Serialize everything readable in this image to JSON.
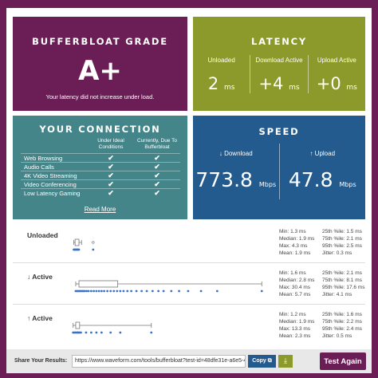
{
  "grade": {
    "title": "BUFFERBLOAT GRADE",
    "value": "A+",
    "note": "Your latency did not increase under load."
  },
  "latency": {
    "title": "LATENCY",
    "cols": [
      {
        "label": "Unloaded",
        "value": "2",
        "unit": "ms"
      },
      {
        "label": "Download Active",
        "value": "+4",
        "unit": "ms"
      },
      {
        "label": "Upload Active",
        "value": "+0",
        "unit": "ms"
      }
    ]
  },
  "connection": {
    "title": "YOUR CONNECTION",
    "col_ideal": "Under Ideal Conditions",
    "col_current": "Currently, Due To Bufferbloat",
    "rows": [
      {
        "label": "Web Browsing",
        "ideal": "✔",
        "current": "✔"
      },
      {
        "label": "Audio Calls",
        "ideal": "✔",
        "current": "✔"
      },
      {
        "label": "4K Video Streaming",
        "ideal": "✔",
        "current": "✔"
      },
      {
        "label": "Video Conferencing",
        "ideal": "✔",
        "current": "✔"
      },
      {
        "label": "Low Latency Gaming",
        "ideal": "✔",
        "current": "✔"
      }
    ],
    "read_more": "Read More"
  },
  "speed": {
    "title": "SPEED",
    "download_label": "↓ Download",
    "download_value": "773.8",
    "upload_label": "↑ Upload",
    "upload_value": "47.8",
    "unit": "Mbps"
  },
  "stats": {
    "unloaded": {
      "label": "Unloaded",
      "left": [
        "Min: 1.3 ms",
        "Median: 1.9 ms",
        "Max: 4.3 ms",
        "Mean: 1.9 ms"
      ],
      "right": [
        "25th %ile: 1.5 ms",
        "75th %ile: 2.1 ms",
        "95th %ile: 2.5 ms",
        "Jitter: 0.3 ms"
      ],
      "box": {
        "whisker_lo": 1.3,
        "q1": 1.5,
        "q3": 2.1,
        "whisker_hi": 2.5,
        "max": 4.3
      },
      "points": [
        1.3,
        1.4,
        1.5,
        1.6,
        1.7,
        1.8,
        1.9,
        2.0,
        2.1,
        4.3
      ]
    },
    "download": {
      "label": "↓ Active",
      "left": [
        "Min: 1.6 ms",
        "Median: 2.8 ms",
        "Max: 30.4 ms",
        "Mean: 5.7 ms"
      ],
      "right": [
        "25th %ile: 2.1 ms",
        "75th %ile: 8.1 ms",
        "95th %ile: 17.6 ms",
        "Jitter: 4.1 ms"
      ],
      "box": {
        "whisker_lo": 1.6,
        "q1": 2.1,
        "q3": 8.1,
        "whisker_hi": 30.4,
        "max": 30.4
      },
      "points": [
        1.6,
        1.8,
        2.0,
        2.2,
        2.4,
        2.6,
        2.8,
        3.0,
        3.3,
        3.6,
        4.0,
        4.4,
        4.8,
        5.2,
        5.6,
        6.0,
        6.5,
        7.0,
        7.5,
        8.0,
        8.5,
        9.0,
        9.6,
        10.2,
        11.0,
        11.8,
        12.6,
        13.5,
        14.4,
        15.2,
        16.4,
        17.6,
        19.0,
        21.0,
        23.5,
        30.4
      ]
    },
    "upload": {
      "label": "↑ Active",
      "left": [
        "Min: 1.2 ms",
        "Median: 1.9 ms",
        "Max: 13.3 ms",
        "Mean: 2.3 ms"
      ],
      "right": [
        "25th %ile: 1.6 ms",
        "75th %ile: 2.2 ms",
        "95th %ile: 2.4 ms",
        "Jitter: 0.5 ms"
      ],
      "box": {
        "whisker_lo": 1.2,
        "q1": 1.6,
        "q3": 2.2,
        "whisker_hi": 13.3,
        "max": 13.3
      },
      "points": [
        1.2,
        1.4,
        1.6,
        1.8,
        1.9,
        2.0,
        2.2,
        2.4,
        3.2,
        4.0,
        4.8,
        5.6,
        7.0,
        8.5,
        13.3
      ]
    },
    "colors": {
      "box": "#777777",
      "point": "#3b73c4"
    }
  },
  "footer": {
    "share_label": "Share Your Results:",
    "share_url": "https://www.waveform.com/tools/bufferbloat?test-id=48dfe31e-a6e5-4",
    "copy_label": "Copy ⧉",
    "download_icon": "⤓",
    "test_again": "Test Again"
  }
}
